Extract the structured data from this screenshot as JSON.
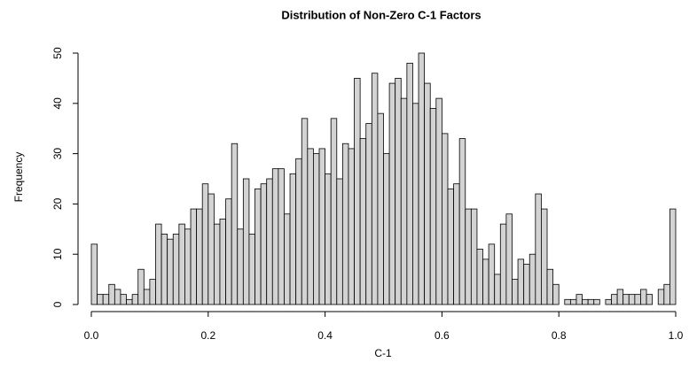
{
  "chart_data": {
    "type": "histogram",
    "title": "Distribution of Non-Zero C-1 Factors",
    "x_label": "C-1",
    "y_label": "Frequency",
    "color": "#d3d3d3",
    "bins": [
      0,
      0.01,
      0.02,
      0.03,
      0.04,
      0.05,
      0.06,
      0.07,
      0.08,
      0.09,
      0.1,
      0.11,
      0.12,
      0.13,
      0.14,
      0.15,
      0.16,
      0.17,
      0.18,
      0.19,
      0.2,
      0.21,
      0.22,
      0.23,
      0.24,
      0.25,
      0.26,
      0.27,
      0.28,
      0.29,
      0.3,
      0.31,
      0.32,
      0.33,
      0.34,
      0.35,
      0.36,
      0.37,
      0.38,
      0.39,
      0.4,
      0.41,
      0.42,
      0.43,
      0.44,
      0.45,
      0.46,
      0.47,
      0.48,
      0.49,
      0.5,
      0.51,
      0.52,
      0.53,
      0.54,
      0.55,
      0.56,
      0.57,
      0.58,
      0.59,
      0.6,
      0.61,
      0.62,
      0.63,
      0.64,
      0.65,
      0.66,
      0.67,
      0.68,
      0.69,
      0.7,
      0.71,
      0.72,
      0.73,
      0.74,
      0.75,
      0.76,
      0.77,
      0.78,
      0.79,
      0.8,
      0.81,
      0.82,
      0.83,
      0.84,
      0.85,
      0.86,
      0.87,
      0.88,
      0.89,
      0.9,
      0.91,
      0.92,
      0.93,
      0.94,
      0.95,
      0.96,
      0.97,
      0.98,
      0.99,
      1
    ],
    "values": [
      12,
      2,
      2,
      4,
      3,
      2,
      1,
      2,
      7,
      3,
      5,
      16,
      14,
      13,
      14,
      16,
      15,
      19,
      19,
      24,
      22,
      16,
      17,
      21,
      32,
      15,
      25,
      14,
      23,
      24,
      25,
      27,
      27,
      18,
      26,
      29,
      37,
      31,
      30,
      31,
      26,
      37,
      25,
      32,
      31,
      45,
      33,
      36,
      46,
      38,
      30,
      44,
      45,
      41,
      48,
      40,
      50,
      44,
      39,
      41,
      34,
      23,
      24,
      33,
      19,
      19,
      11,
      9,
      12,
      6,
      16,
      18,
      5,
      9,
      8,
      10,
      22,
      19,
      7,
      4,
      0,
      1,
      1,
      2,
      1,
      1,
      1,
      0,
      1,
      2,
      3,
      2,
      2,
      2,
      3,
      2,
      0,
      3,
      4,
      19
    ],
    "xlim": [
      0,
      1
    ],
    "xticks": [
      {
        "value": 0,
        "label": "0.0"
      },
      0.2,
      0.4,
      0.6,
      0.8,
      {
        "value": 1,
        "label": "1.0"
      }
    ],
    "ylim": [
      0,
      50
    ],
    "yticks": [
      0,
      10,
      20,
      30,
      40,
      50
    ]
  }
}
